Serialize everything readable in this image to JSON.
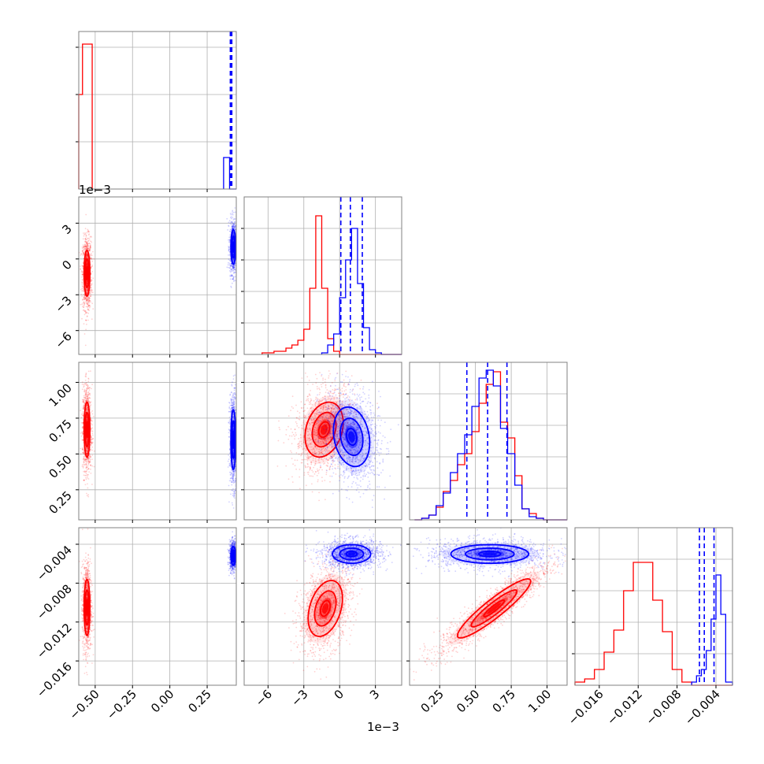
{
  "colors": {
    "series_a": "#ff0000",
    "series_b": "#0000ff",
    "grid": "#b0b0b0",
    "frame": "#808080"
  },
  "offset_labels": {
    "row1_y": "1e−3",
    "col1_x": "1e−3"
  },
  "chart_data": {
    "type": "corner",
    "description_grid": "4 by 4 lower-triangular corner plot",
    "series": [
      {
        "name": "",
        "color": "#ff0000"
      },
      {
        "name": "",
        "color": "#0000ff"
      }
    ],
    "parameters": [
      {
        "range": [
          -0.61,
          0.445
        ],
        "ticks": [
          -0.5,
          -0.25,
          0.0,
          0.25
        ],
        "tick_labels": [
          "−0.50",
          "−0.25",
          "0.00",
          "0.25"
        ],
        "unit_offset": ""
      },
      {
        "range": [
          -8.0,
          5.2
        ],
        "ticks": [
          -6,
          -3,
          0,
          3
        ],
        "tick_labels": [
          "−6",
          "−3",
          "0",
          "3"
        ],
        "unit_offset": "1e−3"
      },
      {
        "range": [
          0.04,
          1.14
        ],
        "ticks": [
          0.25,
          0.5,
          0.75,
          1.0
        ],
        "tick_labels": [
          "0.25",
          "0.50",
          "0.75",
          "1.00"
        ],
        "unit_offset": ""
      },
      {
        "range": [
          -0.0185,
          -0.0023
        ],
        "ticks": [
          -0.016,
          -0.012,
          -0.008,
          -0.004
        ],
        "tick_labels": [
          "−0.016",
          "−0.012",
          "−0.008",
          "−0.004"
        ],
        "unit_offset": ""
      }
    ],
    "histograms": [
      {
        "param": 0,
        "ymax": 1.0,
        "yticks": [
          0.3,
          0.6,
          0.9
        ],
        "series": [
          {
            "color": "#ff0000",
            "edges": [
              -0.61,
              -0.585,
              -0.56,
              -0.52
            ],
            "counts": [
              0.6,
              0.92,
              0.92,
              0.0
            ]
          },
          {
            "color": "#0000ff",
            "edges": [
              0.36,
              0.38,
              0.4,
              0.445
            ],
            "counts": [
              0.2,
              0.2,
              0.0
            ]
          }
        ],
        "quantiles": [
          0.405,
          0.41,
          0.415
        ]
      },
      {
        "param": 1,
        "ymax": 1.0,
        "yticks": [
          0.2,
          0.4,
          0.6,
          0.8
        ],
        "series": [
          {
            "color": "#ff0000",
            "edges": [
              -6.5,
              -5.5,
              -4.5,
              -4.0,
              -3.5,
              -3.0,
              -2.5,
              -2.0,
              -1.5,
              -1.0,
              -0.5,
              0.0
            ],
            "counts": [
              0.01,
              0.02,
              0.04,
              0.06,
              0.09,
              0.16,
              0.42,
              0.88,
              0.42,
              0.1,
              0.02
            ]
          },
          {
            "color": "#0000ff",
            "edges": [
              -1.5,
              -1.0,
              -0.5,
              0.0,
              0.5,
              1.0,
              1.5,
              2.0,
              2.5,
              3.0,
              3.5,
              4.5
            ],
            "counts": [
              0.01,
              0.06,
              0.13,
              0.36,
              0.6,
              0.8,
              0.45,
              0.17,
              0.03,
              0.01,
              0.0
            ]
          }
        ],
        "quantiles": [
          0.1,
          0.9,
          1.9
        ]
      },
      {
        "param": 2,
        "ymax": 1.0,
        "yticks": [
          0.2,
          0.4,
          0.6,
          0.8
        ],
        "series": [
          {
            "color": "#ff0000",
            "edges": [
              0.075,
              0.125,
              0.175,
              0.225,
              0.275,
              0.325,
              0.375,
              0.425,
              0.475,
              0.525,
              0.575,
              0.625,
              0.675,
              0.725,
              0.775,
              0.825,
              0.875,
              0.925,
              0.975,
              1.025
            ],
            "counts": [
              0.0,
              0.01,
              0.03,
              0.08,
              0.18,
              0.25,
              0.35,
              0.42,
              0.56,
              0.74,
              0.86,
              0.94,
              0.62,
              0.52,
              0.28,
              0.07,
              0.04,
              0.01,
              0.0
            ]
          },
          {
            "color": "#0000ff",
            "edges": [
              0.075,
              0.125,
              0.175,
              0.225,
              0.275,
              0.325,
              0.375,
              0.425,
              0.475,
              0.525,
              0.575,
              0.625,
              0.675,
              0.725,
              0.775,
              0.825,
              0.875,
              0.925,
              0.975,
              1.025
            ],
            "counts": [
              0.0,
              0.01,
              0.03,
              0.09,
              0.17,
              0.3,
              0.42,
              0.54,
              0.72,
              0.9,
              0.95,
              0.85,
              0.58,
              0.42,
              0.22,
              0.07,
              0.02,
              0.01,
              0.0
            ]
          }
        ],
        "quantiles": [
          0.44,
          0.585,
          0.72
        ]
      },
      {
        "param": 3,
        "ymax": 1.0,
        "yticks": [
          0.2,
          0.4,
          0.6,
          0.8
        ],
        "series": [
          {
            "color": "#ff0000",
            "edges": [
              -0.0185,
              -0.0175,
              -0.0165,
              -0.0155,
              -0.0145,
              -0.0135,
              -0.0125,
              -0.0115,
              -0.0105,
              -0.0095,
              -0.0085,
              -0.0075,
              -0.0065
            ],
            "counts": [
              0.02,
              0.04,
              0.1,
              0.21,
              0.35,
              0.6,
              0.78,
              0.78,
              0.54,
              0.34,
              0.1,
              0.02
            ]
          },
          {
            "color": "#0000ff",
            "edges": [
              -0.0065,
              -0.006,
              -0.0055,
              -0.005,
              -0.0045,
              -0.004,
              -0.0035,
              -0.003,
              -0.0023
            ],
            "counts": [
              0.02,
              0.06,
              0.1,
              0.22,
              0.42,
              0.7,
              0.45,
              0.02
            ]
          }
        ],
        "quantiles": [
          -0.0057,
          -0.0052,
          -0.0042
        ]
      }
    ],
    "panels_2d": [
      {
        "row": 1,
        "col": 0,
        "red": {
          "center": [
            -0.555,
            -1.2
          ],
          "sd": [
            0.012,
            1.2
          ],
          "rho": 0.0,
          "levels": [
            0.45,
            1.0,
            1.6
          ],
          "n": 1100
        },
        "blue": {
          "center": [
            0.425,
            1.0
          ],
          "sd": [
            0.01,
            0.9
          ],
          "rho": 0.0,
          "levels": [
            0.45,
            1.0,
            1.6
          ],
          "n": 900
        }
      },
      {
        "row": 2,
        "col": 0,
        "red": {
          "center": [
            -0.555,
            0.67
          ],
          "sd": [
            0.012,
            0.12
          ],
          "rho": 0.0,
          "levels": [
            0.45,
            1.0,
            1.6
          ],
          "n": 1100
        },
        "blue": {
          "center": [
            0.425,
            0.6
          ],
          "sd": [
            0.01,
            0.13
          ],
          "rho": 0.0,
          "levels": [
            0.45,
            1.0,
            1.6
          ],
          "n": 900
        }
      },
      {
        "row": 2,
        "col": 1,
        "red": {
          "center": [
            -1.3,
            0.67
          ],
          "sd": [
            1.0,
            0.12
          ],
          "rho": 0.25,
          "levels": [
            0.45,
            1.0,
            1.6
          ],
          "n": 1300
        },
        "blue": {
          "center": [
            1.0,
            0.62
          ],
          "sd": [
            0.95,
            0.13
          ],
          "rho": -0.2,
          "levels": [
            0.45,
            1.0,
            1.6
          ],
          "n": 1300
        }
      },
      {
        "row": 3,
        "col": 0,
        "red": {
          "center": [
            -0.555,
            -0.0105
          ],
          "sd": [
            0.012,
            0.0018
          ],
          "rho": 0.0,
          "levels": [
            0.45,
            1.0,
            1.6
          ],
          "n": 1100
        },
        "blue": {
          "center": [
            0.425,
            -0.0052
          ],
          "sd": [
            0.01,
            0.0006
          ],
          "rho": 0.0,
          "levels": [
            0.45,
            1.0,
            1.6
          ],
          "n": 900
        }
      },
      {
        "row": 3,
        "col": 1,
        "red": {
          "center": [
            -1.2,
            -0.0106
          ],
          "sd": [
            0.9,
            0.0018
          ],
          "rho": 0.35,
          "levels": [
            0.45,
            1.0,
            1.6
          ],
          "n": 1300
        },
        "blue": {
          "center": [
            1.0,
            -0.005
          ],
          "sd": [
            1.0,
            0.0006
          ],
          "rho": 0.0,
          "levels": [
            0.45,
            1.0,
            1.6
          ],
          "n": 1300
        }
      },
      {
        "row": 3,
        "col": 2,
        "red": {
          "center": [
            0.63,
            -0.0106
          ],
          "sd": [
            0.16,
            0.0019
          ],
          "rho": 0.92,
          "levels": [
            0.45,
            1.0,
            1.6
          ],
          "n": 1400
        },
        "blue": {
          "center": [
            0.6,
            -0.005
          ],
          "sd": [
            0.17,
            0.0006
          ],
          "rho": 0.0,
          "levels": [
            0.45,
            1.0,
            1.6
          ],
          "n": 1300
        }
      }
    ],
    "grid": true,
    "legend": "none"
  }
}
